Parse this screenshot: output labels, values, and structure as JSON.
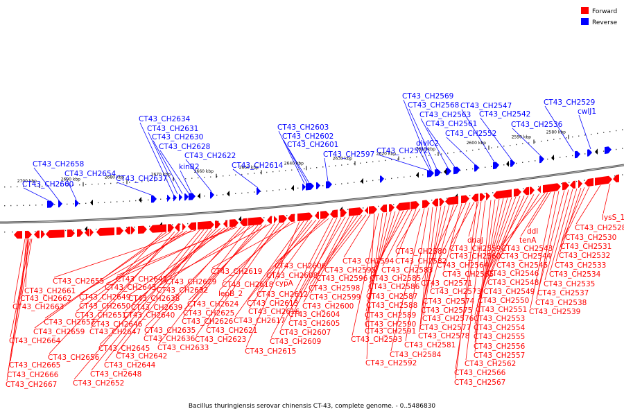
{
  "legend": {
    "forward": {
      "label": "Forward",
      "color": "#ff0000"
    },
    "reverse": {
      "label": "Reverse",
      "color": "#0000ff"
    }
  },
  "caption": "Bacillus thuringiensis serovar chinensis CT-43, complete genome. - 0..5486830",
  "ticks": [
    "2580 kbp",
    "2590 kbp",
    "2600 kbp",
    "2610 kbp",
    "2620 kbp",
    "2630 kbp",
    "2640 kbp",
    "2650 kbp",
    "2660 kbp",
    "2670 kbp",
    "2680 kbp",
    "2690 kbp",
    "2700 kbp"
  ],
  "reverse_genes": [
    "CT43_CH2529",
    "cwlJ1",
    "CT43_CH2536",
    "CT43_CH2542",
    "CT43_CH2547",
    "CT43_CH2552",
    "CT43_CH2561",
    "CT43_CH2563",
    "CT43_CH2568",
    "CT43_CH2569",
    "divIC2",
    "CT43_CH2572",
    "CT43_CH2597",
    "CT43_CH2601",
    "CT43_CH2602",
    "CT43_CH2603",
    "CT43_CH2614",
    "CT43_CH2622",
    "kinB2",
    "CT43_CH2628",
    "CT43_CH2630",
    "CT43_CH2631",
    "CT43_CH2634",
    "CT43_CH2637",
    "CT43_CH2654",
    "CT43_CH2658",
    "CT43_CH2660"
  ],
  "forward_genes": [
    "lysS_1",
    "CT43_CH2528",
    "CT43_CH2530",
    "CT43_CH2531",
    "CT43_CH2532",
    "CT43_CH2533",
    "CT43_CH2534",
    "CT43_CH2535",
    "CT43_CH2537",
    "CT43_CH2538",
    "CT43_CH2539",
    "ddl",
    "tenA",
    "CT43_CH2543",
    "CT43_CH2544",
    "CT43_CH2545",
    "CT43_CH2546",
    "CT43_CH2548",
    "CT43_CH2549",
    "CT43_CH2550",
    "CT43_CH2551",
    "CT43_CH2553",
    "CT43_CH2554",
    "CT43_CH2555",
    "CT43_CH2556",
    "CT43_CH2557",
    "CT43_CH2562",
    "CT43_CH2566",
    "CT43_CH2567",
    "dnaJ",
    "CT43_CH2559",
    "CT43_CH2560",
    "CT43_CH2564",
    "CT43_CH2565",
    "CT43_CH2571",
    "CT43_CH2573",
    "CT43_CH2574",
    "CT43_CH2575",
    "CT43_CH2576",
    "CT43_CH2577",
    "CT43_CH2578",
    "CT43_CH2581",
    "CT43_CH2584",
    "CT43_CH2580",
    "CT43_CH2582",
    "CT43_CH2583",
    "CT43_CH2585",
    "CT43_CH2586",
    "CT43_CH2587",
    "CT43_CH2588",
    "CT43_CH2589",
    "CT43_CH2590",
    "CT43_CH2591",
    "CT43_CH2593",
    "CT43_CH2592",
    "CT43_CH2594",
    "CT43_CH2595",
    "CT43_CH2596",
    "CT43_CH2598",
    "CT43_CH2599",
    "CT43_CH2600",
    "CT43_CH2604",
    "CT43_CH2605",
    "CT43_CH2607",
    "CT43_CH2609",
    "CT43_CH2606",
    "CT43_CH2608",
    "cypA",
    "CT43_CH2612",
    "CT43_CH2613",
    "CT43_CH2616",
    "CT43_CH2617",
    "CT43_CH2615",
    "CT43_CH2619",
    "CT43_CH2618",
    "lepB_2",
    "CT43_CH2621",
    "CT43_CH2623",
    "CT43_CH2629",
    "CT43_CH2624",
    "CT43_CH2625",
    "CT43_CH2626",
    "CT43_CH2632",
    "CT43_CH2633",
    "CT43_CH2635",
    "CT43_CH2636",
    "CT43_CH2641",
    "CT43_CH2643",
    "CT43_CH2638",
    "CT43_CH2639",
    "CT43_CH2640",
    "CT43_CH2645",
    "CT43_CH2642",
    "CT43_CH2644",
    "CT43_CH2648",
    "CT43_CH2652",
    "CT43_CH2655",
    "CT43_CH2649",
    "CT43_CH2650",
    "CT43_CH2651",
    "CT43_CH2646",
    "CT43_CH2647",
    "CT43_CH2657",
    "CT43_CH2659",
    "CT43_CH2656",
    "CT43_CH2661",
    "CT43_CH2662",
    "CT43_CH2663",
    "CT43_CH2664",
    "CT43_CH2665",
    "CT43_CH2666",
    "CT43_CH2667"
  ]
}
